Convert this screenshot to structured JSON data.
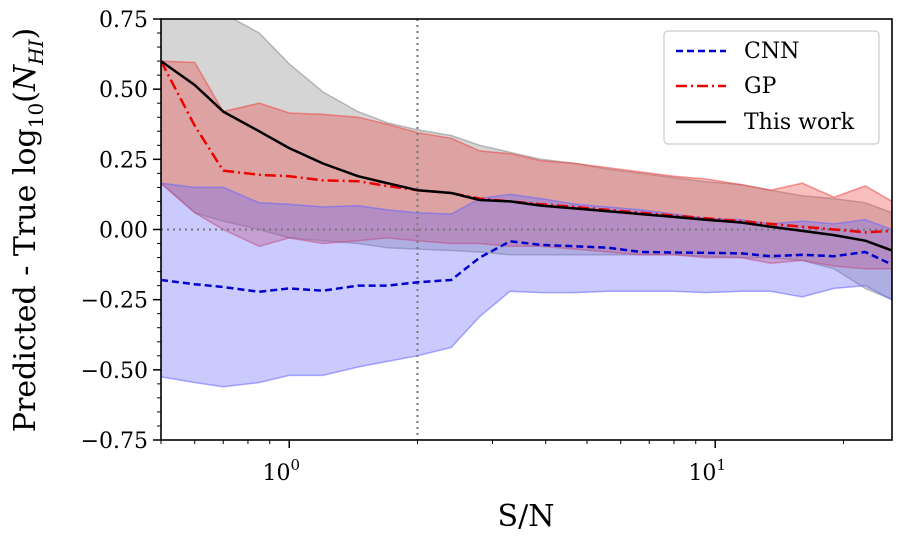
{
  "chart_data": {
    "type": "line",
    "x_scale": "log",
    "xlim": [
      0.5,
      26
    ],
    "ylim": [
      -0.75,
      0.75
    ],
    "xlabel": "S/N",
    "ylabel": "Predicted - True log10(NHI)",
    "ylabel_parts": {
      "main": "Predicted - True log",
      "sub10": "10",
      "open": "(",
      "N": "N",
      "sub": "HI",
      "close": ")"
    },
    "x_major_ticks": [
      1,
      10
    ],
    "x_tick_labels": [
      {
        "base": "10",
        "exp": "0"
      },
      {
        "base": "10",
        "exp": "1"
      }
    ],
    "y_ticks": [
      -0.75,
      -0.5,
      -0.25,
      0.0,
      0.25,
      0.5,
      0.75
    ],
    "y_tick_labels": [
      "−0.75",
      "−0.50",
      "−0.25",
      "0.00",
      "0.25",
      "0.50",
      "0.75"
    ],
    "vline_x": 2.0,
    "hline_y": 0.0,
    "legend_position": "top-right",
    "x": [
      0.5,
      0.6,
      0.7,
      0.85,
      1.0,
      1.2,
      1.45,
      1.7,
      2.0,
      2.4,
      2.8,
      3.3,
      3.9,
      4.7,
      5.6,
      6.7,
      8.0,
      9.5,
      11.5,
      13.5,
      16.0,
      19.0,
      22.5,
      26.0
    ],
    "series": [
      {
        "name": "CNN",
        "color": "#0000cc",
        "dash": "dashed",
        "band_color": "#6666ff",
        "values": [
          -0.18,
          -0.195,
          -0.205,
          -0.222,
          -0.21,
          -0.218,
          -0.2,
          -0.2,
          -0.188,
          -0.18,
          -0.1,
          -0.042,
          -0.055,
          -0.06,
          -0.065,
          -0.08,
          -0.082,
          -0.083,
          -0.085,
          -0.095,
          -0.09,
          -0.095,
          -0.08,
          -0.125
        ],
        "lower": [
          -0.525,
          -0.545,
          -0.56,
          -0.545,
          -0.52,
          -0.52,
          -0.49,
          -0.47,
          -0.45,
          -0.42,
          -0.31,
          -0.22,
          -0.225,
          -0.225,
          -0.22,
          -0.22,
          -0.22,
          -0.225,
          -0.22,
          -0.22,
          -0.24,
          -0.21,
          -0.2,
          -0.25
        ],
        "upper": [
          0.165,
          0.15,
          0.15,
          0.095,
          0.09,
          0.08,
          0.085,
          0.07,
          0.06,
          0.055,
          0.11,
          0.125,
          0.11,
          0.09,
          0.08,
          0.07,
          0.055,
          0.04,
          0.035,
          0.02,
          0.03,
          0.02,
          0.035,
          0.0
        ]
      },
      {
        "name": "GP",
        "color": "#ee0000",
        "dash": "dashdot",
        "band_color": "#ee4444",
        "values": [
          0.6,
          0.37,
          0.21,
          0.195,
          0.19,
          0.175,
          0.172,
          0.155,
          0.14,
          0.13,
          0.11,
          0.1,
          0.09,
          0.08,
          0.07,
          0.06,
          0.05,
          0.04,
          0.03,
          0.02,
          0.01,
          0.0,
          -0.01,
          -0.005
        ],
        "lower": [
          0.165,
          0.06,
          0.0,
          -0.06,
          -0.03,
          -0.05,
          -0.04,
          -0.03,
          -0.04,
          -0.05,
          -0.05,
          -0.06,
          -0.06,
          -0.07,
          -0.08,
          -0.09,
          -0.09,
          -0.1,
          -0.1,
          -0.12,
          -0.11,
          -0.13,
          -0.14,
          -0.14
        ],
        "upper": [
          0.6,
          0.595,
          0.42,
          0.45,
          0.415,
          0.41,
          0.4,
          0.375,
          0.345,
          0.325,
          0.28,
          0.27,
          0.245,
          0.235,
          0.22,
          0.205,
          0.19,
          0.18,
          0.16,
          0.14,
          0.165,
          0.115,
          0.155,
          0.1
        ]
      },
      {
        "name": "This work",
        "color": "#000000",
        "dash": "solid",
        "band_color": "#888888",
        "values": [
          0.6,
          0.515,
          0.42,
          0.35,
          0.29,
          0.235,
          0.19,
          0.165,
          0.14,
          0.13,
          0.105,
          0.1,
          0.085,
          0.075,
          0.065,
          0.055,
          0.045,
          0.035,
          0.025,
          0.01,
          -0.005,
          -0.02,
          -0.04,
          -0.075
        ],
        "lower": [
          0.165,
          0.06,
          0.03,
          0.0,
          -0.03,
          -0.04,
          -0.05,
          -0.065,
          -0.07,
          -0.075,
          -0.08,
          -0.09,
          -0.09,
          -0.09,
          -0.09,
          -0.09,
          -0.09,
          -0.095,
          -0.1,
          -0.1,
          -0.11,
          -0.14,
          -0.21,
          -0.25
        ],
        "upper": [
          0.77,
          0.77,
          0.77,
          0.7,
          0.59,
          0.49,
          0.42,
          0.38,
          0.355,
          0.335,
          0.3,
          0.275,
          0.25,
          0.235,
          0.215,
          0.2,
          0.185,
          0.17,
          0.16,
          0.14,
          0.12,
          0.11,
          0.095,
          0.06
        ]
      }
    ]
  }
}
